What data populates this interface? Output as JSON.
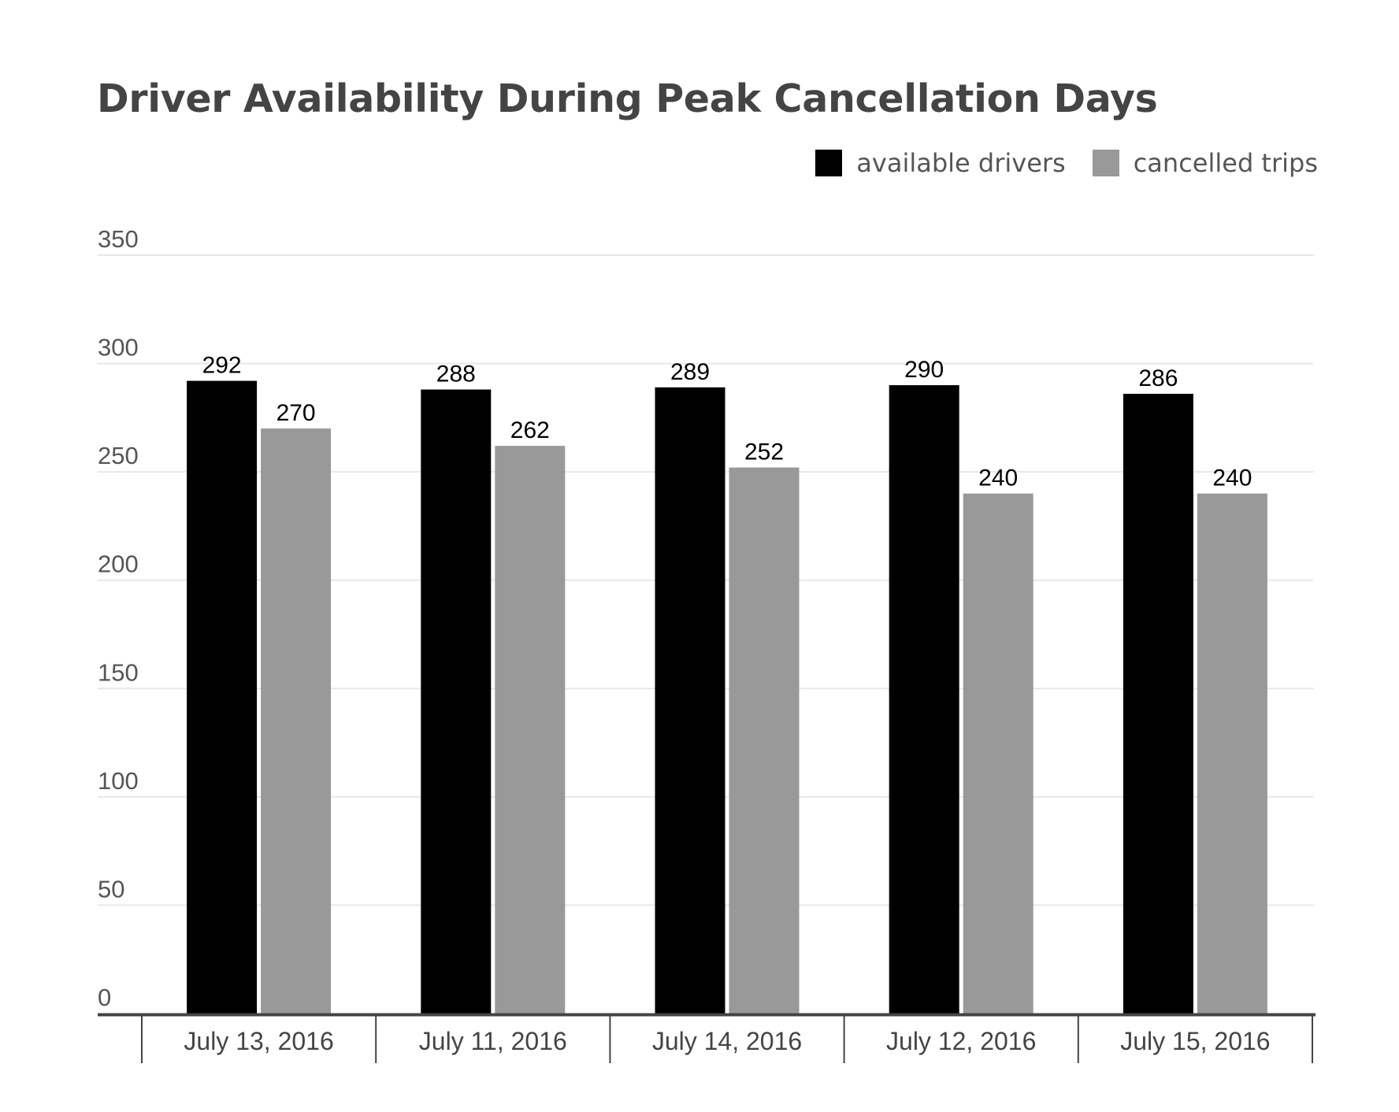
{
  "chart_data": {
    "type": "bar",
    "title": "Driver Availability During Peak Cancellation Days",
    "xlabel": "",
    "ylabel": "",
    "categories": [
      "July 13, 2016",
      "July 11, 2016",
      "July 14, 2016",
      "July 12, 2016",
      "July 15, 2016"
    ],
    "series": [
      {
        "name": "available drivers",
        "color": "#000000",
        "values": [
          292,
          288,
          289,
          290,
          286
        ]
      },
      {
        "name": "cancelled trips",
        "color": "#999999",
        "values": [
          270,
          262,
          252,
          240,
          240
        ]
      }
    ],
    "ylim": [
      0,
      350
    ],
    "yticks": [
      0,
      50,
      100,
      150,
      200,
      250,
      300,
      350
    ],
    "grid": true,
    "legend_position": "top-right",
    "data_labels": true
  }
}
